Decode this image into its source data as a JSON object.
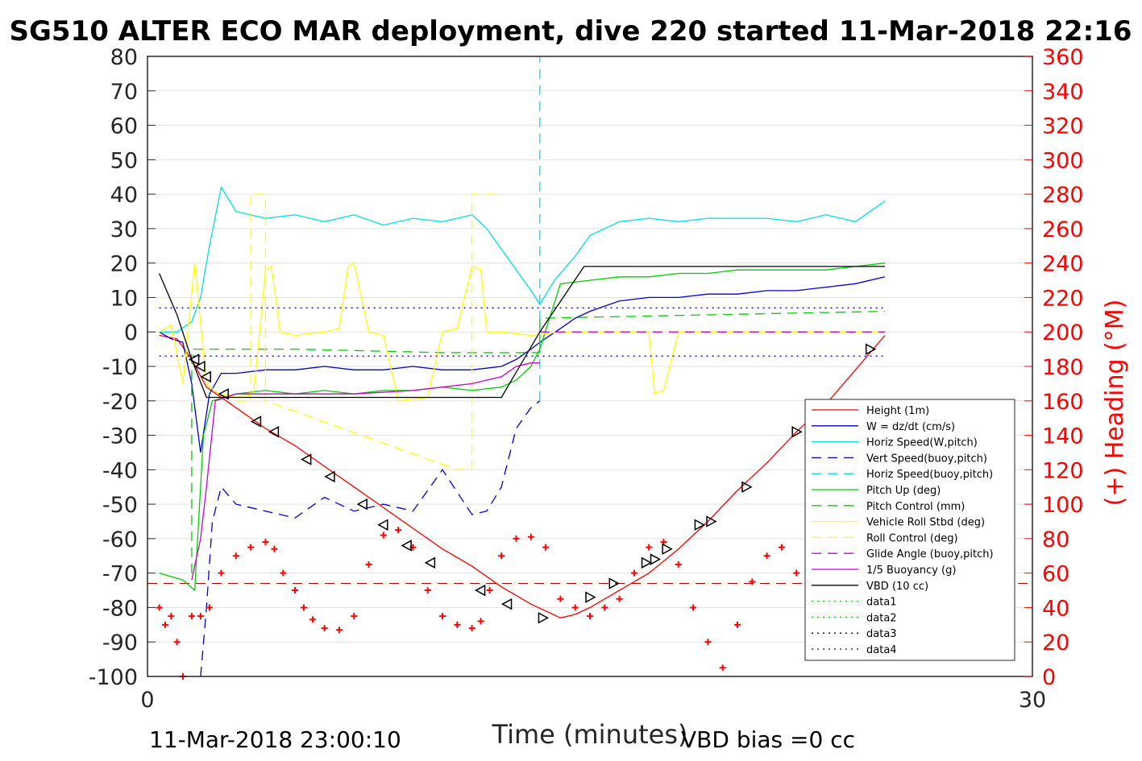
{
  "chart_data": {
    "type": "line",
    "title": "SG510 ALTER ECO MAR deployment, dive 220 started 11-Mar-2018 22:16",
    "xlabel": "Time (minutes)",
    "ylabel_right": "(+) Heading (°M)",
    "xlim": [
      0,
      30
    ],
    "ylim_left": [
      -100,
      80
    ],
    "ylim_right": [
      0,
      360
    ],
    "x_ticks": [
      "0",
      "30"
    ],
    "y_ticks_left": [
      "80",
      "70",
      "60",
      "50",
      "40",
      "30",
      "20",
      "10",
      "0",
      "-10",
      "-20",
      "-30",
      "-40",
      "-50",
      "-60",
      "-70",
      "-80",
      "-90",
      "-100"
    ],
    "y_ticks_right": [
      "360",
      "340",
      "320",
      "300",
      "280",
      "260",
      "240",
      "220",
      "200",
      "180",
      "160",
      "140",
      "120",
      "100",
      "80",
      "60",
      "40",
      "20",
      "0"
    ],
    "grid": "horizontal",
    "legend_position": "right",
    "footer_left": "11-Mar-2018 23:00:10",
    "footer_right": "VBD bias =0 cc",
    "colors": {
      "red": "#ff0000",
      "blue": "#0000cc",
      "cyan": "#00e0e0",
      "green": "#00cc00",
      "yellow": "#ffff00",
      "magenta": "#cc00cc",
      "black": "#000000",
      "darkred": "#aa0000"
    },
    "series": [
      {
        "name": "Height (1m)",
        "color": "#ff0000",
        "style": "solid",
        "x": [
          0.4,
          1.0,
          1.5,
          2.0,
          3.0,
          4.0,
          5.0,
          6.0,
          7.0,
          8.0,
          9.0,
          10.0,
          11.0,
          12.0,
          13.0,
          13.5,
          14.0,
          14.5,
          15.0,
          16.0,
          17.0,
          18.0,
          19.0,
          20.0,
          21.0,
          22.0,
          23.0,
          24.0,
          25.0
        ],
        "y": [
          -1,
          -2,
          -8,
          -16,
          -22,
          -28,
          -33,
          -39,
          -45,
          -51,
          -57,
          -63,
          -68,
          -74,
          -79,
          -81,
          -83,
          -82,
          -80,
          -75,
          -70,
          -63,
          -55,
          -46,
          -38,
          -29,
          -21,
          -11,
          -1
        ]
      },
      {
        "name": "W = dz/dt (cm/s)",
        "color": "#0000cc",
        "style": "solid",
        "x": [
          0.4,
          0.8,
          1.2,
          1.5,
          1.8,
          2.1,
          2.5,
          3,
          4,
          5,
          6,
          7,
          8,
          9,
          10,
          11,
          12,
          12.5,
          13,
          13.3,
          14,
          14.5,
          15,
          16,
          17,
          18,
          19,
          20,
          21,
          22,
          23,
          24,
          25
        ],
        "y": [
          0,
          -2,
          -3,
          -15,
          -35,
          -18,
          -12,
          -12,
          -11,
          -11,
          -10,
          -11,
          -11,
          -10,
          -11,
          -11,
          -10,
          -8,
          -5,
          -3,
          1,
          4,
          6,
          9,
          10,
          10,
          11,
          11,
          12,
          12,
          13,
          14,
          16
        ]
      },
      {
        "name": "Horiz Speed(W,pitch)",
        "color": "#00e0e0",
        "style": "solid",
        "x": [
          0.4,
          1.0,
          1.5,
          1.8,
          2.1,
          2.5,
          3,
          4,
          5,
          6,
          7,
          8,
          9,
          10,
          11,
          11.5,
          12,
          12.5,
          13,
          13.3,
          13.8,
          14.5,
          15,
          16,
          17,
          18,
          19,
          20,
          21,
          22,
          23,
          24,
          25
        ],
        "y": [
          0,
          0,
          3,
          10,
          25,
          42,
          35,
          33,
          34,
          32,
          34,
          31,
          33,
          32,
          34,
          30,
          24,
          18,
          12,
          8,
          15,
          22,
          28,
          32,
          33,
          32,
          33,
          33,
          33,
          32,
          34,
          32,
          38
        ]
      },
      {
        "name": "Vert Speed(buoy,pitch)",
        "color": "#0000cc",
        "style": "dash",
        "x": [
          1.8,
          2.0,
          2.2,
          2.5,
          3,
          4,
          5,
          6,
          7,
          8,
          9,
          10,
          11,
          11.5,
          12,
          12.5,
          13,
          13.3
        ],
        "y": [
          -100,
          -80,
          -55,
          -45,
          -50,
          -52,
          -54,
          -48,
          -52,
          -50,
          -52,
          -40,
          -53,
          -52,
          -45,
          -28,
          -22,
          -20
        ]
      },
      {
        "name": "Horiz Speed(buoy,pitch)",
        "color": "#00e0e0",
        "style": "dash",
        "x": [
          13.3,
          13.3
        ],
        "y": [
          -20,
          80
        ]
      },
      {
        "name": "Pitch Up (deg)",
        "color": "#00cc00",
        "style": "solid",
        "x": [
          0.4,
          1.2,
          1.6,
          1.9,
          2.2,
          3,
          4,
          5,
          6,
          7,
          8,
          9,
          10,
          11,
          12,
          12.5,
          13,
          13.3,
          14,
          15,
          16,
          17,
          18,
          19,
          20,
          21,
          22,
          23,
          24,
          25
        ],
        "y": [
          -70,
          -72,
          -75,
          -30,
          -20,
          -18,
          -17,
          -18,
          -17,
          -18,
          -17,
          -17,
          -16,
          -17,
          -16,
          -14,
          -10,
          -5,
          14,
          15,
          16,
          16,
          17,
          17,
          18,
          18,
          18,
          18,
          19,
          20
        ]
      },
      {
        "name": "Pitch Control (mm)",
        "color": "#00cc00",
        "style": "dash",
        "x": [
          1.5,
          1.5,
          2,
          5,
          10,
          13.3,
          13.3,
          25
        ],
        "y": [
          -70,
          -5,
          -5,
          -5,
          -6,
          -6,
          4,
          6
        ]
      },
      {
        "name": "Vehicle Roll Stbd (deg)",
        "color": "#ffff00",
        "style": "solid",
        "x": [
          0.4,
          0.8,
          1.2,
          1.6,
          2,
          2.4,
          3,
          3.6,
          3.8,
          4.0,
          4.2,
          4.5,
          5.0,
          6.0,
          6.5,
          6.8,
          7.0,
          7.5,
          8.0,
          8.5,
          9.5,
          10.0,
          10.5,
          11.0,
          11.3,
          11.5,
          12.0,
          13,
          14,
          15,
          16,
          16.5,
          17,
          17.2,
          17.5,
          18,
          19,
          20,
          21,
          22,
          23,
          24,
          25
        ],
        "y": [
          0,
          2,
          -15,
          20,
          -15,
          -18,
          -19,
          -18,
          0,
          18,
          19,
          0,
          -1,
          0,
          1,
          19,
          20,
          0,
          -1,
          -20,
          -19,
          0,
          1,
          19,
          18,
          0,
          0,
          -1,
          0,
          0,
          0,
          0,
          0,
          -18,
          -17,
          0,
          0,
          0,
          0,
          0,
          0,
          0,
          0
        ]
      },
      {
        "name": "Roll Control (deg)",
        "color": "#ffff00",
        "style": "dash",
        "x": [
          3,
          3.5,
          3.5,
          4,
          4,
          10.5,
          11,
          11,
          12
        ],
        "y": [
          -20,
          -20,
          40,
          40,
          -20,
          -40,
          -40,
          40,
          40
        ]
      },
      {
        "name": "Glide Angle (buoy,pitch)",
        "color": "#cc00cc",
        "style": "dash",
        "x": [
          13.3,
          25
        ],
        "y": [
          0,
          0
        ]
      },
      {
        "name": "1/5 Buoyancy (g)",
        "color": "#cc00cc",
        "style": "solid",
        "x": [
          1.5,
          1.8,
          2,
          2.3,
          3,
          5,
          7,
          9,
          10,
          11,
          12,
          12.5,
          13,
          13.3
        ],
        "y": [
          -72,
          -60,
          -45,
          -20,
          -18,
          -18,
          -18,
          -17,
          -16,
          -15,
          -13,
          -10,
          -9,
          -9
        ]
      },
      {
        "name": "VBD (10 cc)",
        "color": "#000000",
        "style": "solid",
        "x": [
          0.4,
          1.0,
          1.5,
          2.0,
          12.0,
          13.3,
          14.8,
          25
        ],
        "y": [
          17,
          5,
          -8,
          -19,
          -19,
          0,
          19,
          19
        ]
      },
      {
        "name": "data1",
        "color": "#00cc00",
        "style": "dot",
        "x": [],
        "y": []
      },
      {
        "name": "data2",
        "color": "#00cc00",
        "style": "dot",
        "x": [],
        "y": []
      },
      {
        "name": "data3",
        "color": "#000000",
        "style": "dot",
        "x": [],
        "y": []
      },
      {
        "name": "data4",
        "color": "#0000cc",
        "style": "dot",
        "x": [
          0.4,
          25,
          null,
          0.4,
          25
        ],
        "y": [
          7,
          7,
          null,
          -7,
          -7
        ]
      }
    ],
    "reference_line": {
      "color": "#aa0000",
      "style": "dash",
      "y": -73
    },
    "heading_markers": {
      "color": "#ff0000",
      "marker": "+",
      "axis": "right",
      "x": [
        0.4,
        0.6,
        0.8,
        1.0,
        1.2,
        1.5,
        1.8,
        2.1,
        2.5,
        3.0,
        3.5,
        4.0,
        4.3,
        4.6,
        5.0,
        5.3,
        5.6,
        6.0,
        6.5,
        7.0,
        7.5,
        8.0,
        8.5,
        9.0,
        9.5,
        10.0,
        10.5,
        11.0,
        11.3,
        11.6,
        12.0,
        12.5,
        13.0,
        13.5,
        14.0,
        14.5,
        15.0,
        15.5,
        16.0,
        16.5,
        17.0,
        17.5,
        18.0,
        18.5,
        19.0,
        19.5,
        20.0,
        20.5,
        21.0,
        21.5,
        22.0,
        22.5,
        22.8
      ],
      "y": [
        40,
        30,
        35,
        20,
        0,
        35,
        35,
        40,
        60,
        70,
        75,
        78,
        74,
        60,
        50,
        40,
        33,
        28,
        27,
        35,
        65,
        82,
        85,
        75,
        50,
        35,
        30,
        28,
        32,
        50,
        70,
        80,
        81,
        75,
        45,
        40,
        35,
        40,
        45,
        60,
        75,
        78,
        65,
        40,
        20,
        5,
        30,
        55,
        70,
        75,
        60,
        45,
        40
      ]
    },
    "triangle_markers": {
      "color": "#000000",
      "x": [
        1.6,
        1.8,
        2.0,
        2.6,
        3.7,
        4.3,
        5.4,
        6.2,
        7.3,
        8.0,
        8.8,
        9.6,
        11.3,
        12.2,
        13.4,
        15.0,
        15.8,
        16.9,
        17.2,
        17.6,
        18.7,
        19.1,
        20.3,
        22.0,
        24.5
      ],
      "y": [
        -8,
        -10,
        -13,
        -18,
        -26,
        -29,
        -37,
        -42,
        -50,
        -56,
        -62,
        -67,
        -75,
        -79,
        -83,
        -77,
        -73,
        -67,
        -66,
        -63,
        -56,
        -55,
        -45,
        -29,
        -5
      ]
    }
  }
}
